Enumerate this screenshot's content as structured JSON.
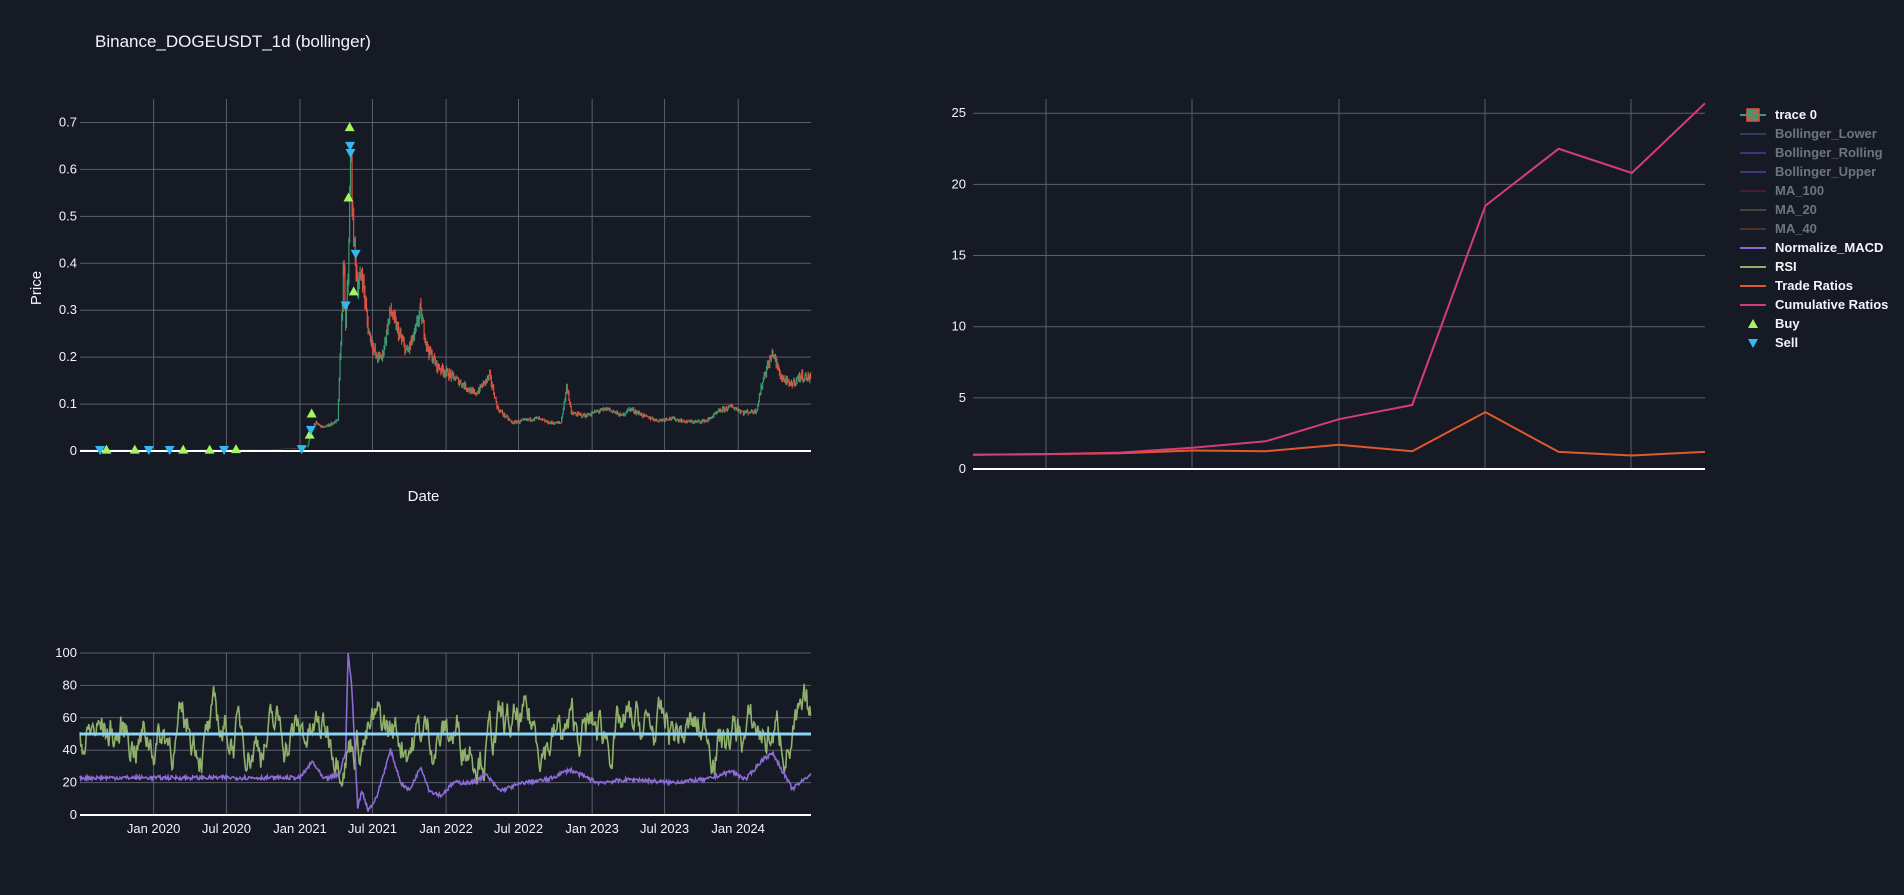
{
  "title": "Binance_DOGEUSDT_1d (bollinger)",
  "colors": {
    "background": "#151a24",
    "grid": "#5a5f6b",
    "text": "#f2f5fa",
    "candle_up": "#3d9970",
    "candle_down": "#e0513f",
    "rsi": "#8fb06a",
    "macd": "#8c6bd6",
    "trade_ratios": "#e0582c",
    "cumulative_ratios": "#d63d74",
    "buy": "#a4f55e",
    "sell": "#34b8f2",
    "rsi_midline": "#8dd3f2"
  },
  "chart_data": [
    {
      "type": "candlestick",
      "panel": "price",
      "title": "Binance_DOGEUSDT_1d (bollinger)",
      "xlabel": "Date",
      "ylabel": "Price",
      "x_range": [
        "2019-07-01",
        "2024-07-01"
      ],
      "x_gridlines": [
        "2020-01-01",
        "2020-07-01",
        "2021-01-01",
        "2021-07-01",
        "2022-01-01",
        "2022-07-01",
        "2023-01-01",
        "2023-07-01",
        "2024-01-01"
      ],
      "ylim": [
        0,
        0.75
      ],
      "yticks": [
        0,
        0.1,
        0.2,
        0.3,
        0.4,
        0.5,
        0.6,
        0.7
      ],
      "ytick_labels": [
        "0",
        "0.1",
        "0.2",
        "0.3",
        "0.4",
        "0.5",
        "0.6",
        "0.7"
      ],
      "series_close": [
        [
          "2019-07-01",
          0.004
        ],
        [
          "2019-10-01",
          0.0027
        ],
        [
          "2020-01-01",
          0.002
        ],
        [
          "2020-04-01",
          0.0021
        ],
        [
          "2020-07-01",
          0.003
        ],
        [
          "2020-10-01",
          0.0026
        ],
        [
          "2021-01-01",
          0.006
        ],
        [
          "2021-01-20",
          0.009
        ],
        [
          "2021-01-28",
          0.045
        ],
        [
          "2021-02-08",
          0.06
        ],
        [
          "2021-03-01",
          0.05
        ],
        [
          "2021-03-25",
          0.06
        ],
        [
          "2021-04-05",
          0.065
        ],
        [
          "2021-04-16",
          0.3
        ],
        [
          "2021-04-20",
          0.4
        ],
        [
          "2021-04-25",
          0.26
        ],
        [
          "2021-05-01",
          0.38
        ],
        [
          "2021-05-08",
          0.65
        ],
        [
          "2021-05-12",
          0.5
        ],
        [
          "2021-05-18",
          0.42
        ],
        [
          "2021-05-25",
          0.35
        ],
        [
          "2021-06-05",
          0.38
        ],
        [
          "2021-06-20",
          0.26
        ],
        [
          "2021-07-10",
          0.2
        ],
        [
          "2021-07-25",
          0.2
        ],
        [
          "2021-08-15",
          0.3
        ],
        [
          "2021-09-05",
          0.25
        ],
        [
          "2021-09-25",
          0.21
        ],
        [
          "2021-10-15",
          0.25
        ],
        [
          "2021-10-28",
          0.3
        ],
        [
          "2021-11-15",
          0.22
        ],
        [
          "2021-12-10",
          0.18
        ],
        [
          "2022-01-15",
          0.16
        ],
        [
          "2022-02-15",
          0.14
        ],
        [
          "2022-03-15",
          0.12
        ],
        [
          "2022-04-01",
          0.14
        ],
        [
          "2022-04-20",
          0.16
        ],
        [
          "2022-05-10",
          0.09
        ],
        [
          "2022-06-15",
          0.06
        ],
        [
          "2022-07-15",
          0.065
        ],
        [
          "2022-08-15",
          0.07
        ],
        [
          "2022-09-15",
          0.06
        ],
        [
          "2022-10-15",
          0.06
        ],
        [
          "2022-10-30",
          0.14
        ],
        [
          "2022-11-10",
          0.08
        ],
        [
          "2022-12-15",
          0.075
        ],
        [
          "2023-01-15",
          0.085
        ],
        [
          "2023-02-10",
          0.09
        ],
        [
          "2023-03-15",
          0.075
        ],
        [
          "2023-04-05",
          0.09
        ],
        [
          "2023-05-15",
          0.073
        ],
        [
          "2023-06-15",
          0.065
        ],
        [
          "2023-07-15",
          0.07
        ],
        [
          "2023-08-20",
          0.063
        ],
        [
          "2023-09-15",
          0.062
        ],
        [
          "2023-10-15",
          0.065
        ],
        [
          "2023-11-15",
          0.085
        ],
        [
          "2023-12-15",
          0.095
        ],
        [
          "2024-01-15",
          0.082
        ],
        [
          "2024-02-15",
          0.085
        ],
        [
          "2024-03-05",
          0.16
        ],
        [
          "2024-03-28",
          0.21
        ],
        [
          "2024-04-15",
          0.16
        ],
        [
          "2024-05-10",
          0.14
        ],
        [
          "2024-06-05",
          0.16
        ],
        [
          "2024-06-30",
          0.155
        ]
      ],
      "buy_markers": [
        [
          "2019-09-05",
          0.003
        ],
        [
          "2019-11-15",
          0.003
        ],
        [
          "2020-03-15",
          0.003
        ],
        [
          "2020-05-20",
          0.003
        ],
        [
          "2020-07-25",
          0.004
        ],
        [
          "2021-01-25",
          0.035
        ],
        [
          "2021-01-30",
          0.08
        ],
        [
          "2021-05-02",
          0.54
        ],
        [
          "2021-05-05",
          0.69
        ],
        [
          "2021-05-15",
          0.34
        ]
      ],
      "sell_markers": [
        [
          "2019-08-20",
          0.002
        ],
        [
          "2019-12-20",
          0.002
        ],
        [
          "2020-02-10",
          0.002
        ],
        [
          "2020-06-25",
          0.002
        ],
        [
          "2021-01-05",
          0.004
        ],
        [
          "2021-01-28",
          0.045
        ],
        [
          "2021-04-25",
          0.31
        ],
        [
          "2021-05-06",
          0.65
        ],
        [
          "2021-05-07",
          0.635
        ],
        [
          "2021-05-20",
          0.42
        ]
      ]
    },
    {
      "type": "line",
      "panel": "ratios",
      "ylim": [
        0,
        26
      ],
      "yticks": [
        0,
        5,
        10,
        15,
        20,
        25
      ],
      "ytick_labels": [
        "0",
        "5",
        "10",
        "15",
        "20",
        "25"
      ],
      "x": [
        0,
        1,
        2,
        3,
        4,
        5,
        6,
        7,
        8,
        9,
        10
      ],
      "series": [
        {
          "name": "Trade Ratios",
          "values": [
            1.0,
            1.05,
            1.1,
            1.3,
            1.25,
            1.7,
            1.25,
            4.0,
            1.2,
            0.95,
            1.2
          ]
        },
        {
          "name": "Cumulative Ratios",
          "values": [
            1.0,
            1.05,
            1.15,
            1.5,
            1.95,
            3.5,
            4.5,
            18.5,
            22.5,
            20.8,
            25.7
          ]
        }
      ]
    },
    {
      "type": "line",
      "panel": "indicators",
      "ylim": [
        0,
        100
      ],
      "yticks": [
        0,
        20,
        40,
        60,
        80,
        100
      ],
      "ytick_labels": [
        "0",
        "20",
        "40",
        "60",
        "80",
        "100"
      ],
      "x_range": [
        "2019-07-01",
        "2024-07-01"
      ],
      "xticks": [
        "2020-01-01",
        "2020-07-01",
        "2021-01-01",
        "2021-07-01",
        "2022-01-01",
        "2022-07-01",
        "2023-01-01",
        "2023-07-01",
        "2024-01-01"
      ],
      "xtick_labels": [
        "Jan 2020",
        "Jul 2020",
        "Jan 2021",
        "Jul 2021",
        "Jan 2022",
        "Jul 2022",
        "Jan 2023",
        "Jul 2023",
        "Jan 2024"
      ],
      "rsi_midline": 50,
      "macd_series": [
        [
          "2019-07-01",
          23
        ],
        [
          "2021-01-01",
          23
        ],
        [
          "2021-02-01",
          33
        ],
        [
          "2021-03-01",
          22
        ],
        [
          "2021-04-10",
          25
        ],
        [
          "2021-04-25",
          40
        ],
        [
          "2021-05-01",
          100
        ],
        [
          "2021-05-10",
          80
        ],
        [
          "2021-05-25",
          5
        ],
        [
          "2021-06-05",
          15
        ],
        [
          "2021-06-20",
          3
        ],
        [
          "2021-07-10",
          10
        ],
        [
          "2021-08-15",
          40
        ],
        [
          "2021-09-10",
          20
        ],
        [
          "2021-10-01",
          15
        ],
        [
          "2021-10-30",
          30
        ],
        [
          "2021-11-20",
          15
        ],
        [
          "2021-12-20",
          12
        ],
        [
          "2022-01-20",
          20
        ],
        [
          "2022-03-10",
          20
        ],
        [
          "2022-04-10",
          25
        ],
        [
          "2022-05-15",
          15
        ],
        [
          "2022-07-15",
          20
        ],
        [
          "2022-09-15",
          22
        ],
        [
          "2022-11-05",
          28
        ],
        [
          "2023-01-15",
          20
        ],
        [
          "2023-04-15",
          22
        ],
        [
          "2023-07-15",
          20
        ],
        [
          "2023-10-15",
          22
        ],
        [
          "2023-12-15",
          27
        ],
        [
          "2024-01-20",
          22
        ],
        [
          "2024-03-05",
          35
        ],
        [
          "2024-03-28",
          38
        ],
        [
          "2024-05-15",
          16
        ],
        [
          "2024-06-15",
          22
        ],
        [
          "2024-07-01",
          26
        ]
      ]
    }
  ],
  "legend": [
    {
      "name": "trace 0",
      "kind": "candle",
      "active": true
    },
    {
      "name": "Bollinger_Lower",
      "kind": "line",
      "color": "#5b57b5",
      "active": false
    },
    {
      "name": "Bollinger_Rolling",
      "kind": "line",
      "color": "#6a4fd4",
      "active": false
    },
    {
      "name": "Bollinger_Upper",
      "kind": "line",
      "color": "#6b56c8",
      "active": false
    },
    {
      "name": "MA_100",
      "kind": "line",
      "color": "#7a2040",
      "active": false
    },
    {
      "name": "MA_20",
      "kind": "line",
      "color": "#6e7a3a",
      "active": false
    },
    {
      "name": "MA_40",
      "kind": "line",
      "color": "#8a4a1c",
      "active": false
    },
    {
      "name": "Normalize_MACD",
      "kind": "line",
      "color": "#8c6bd6",
      "active": true
    },
    {
      "name": "RSI",
      "kind": "line",
      "color": "#8fb06a",
      "active": true
    },
    {
      "name": "Trade Ratios",
      "kind": "line",
      "color": "#e0582c",
      "active": true
    },
    {
      "name": "Cumulative Ratios",
      "kind": "line",
      "color": "#d63d74",
      "active": true
    },
    {
      "name": "Buy",
      "kind": "triangle-up",
      "color": "#a4f55e",
      "active": true
    },
    {
      "name": "Sell",
      "kind": "triangle-down",
      "color": "#34b8f2",
      "active": true
    }
  ]
}
